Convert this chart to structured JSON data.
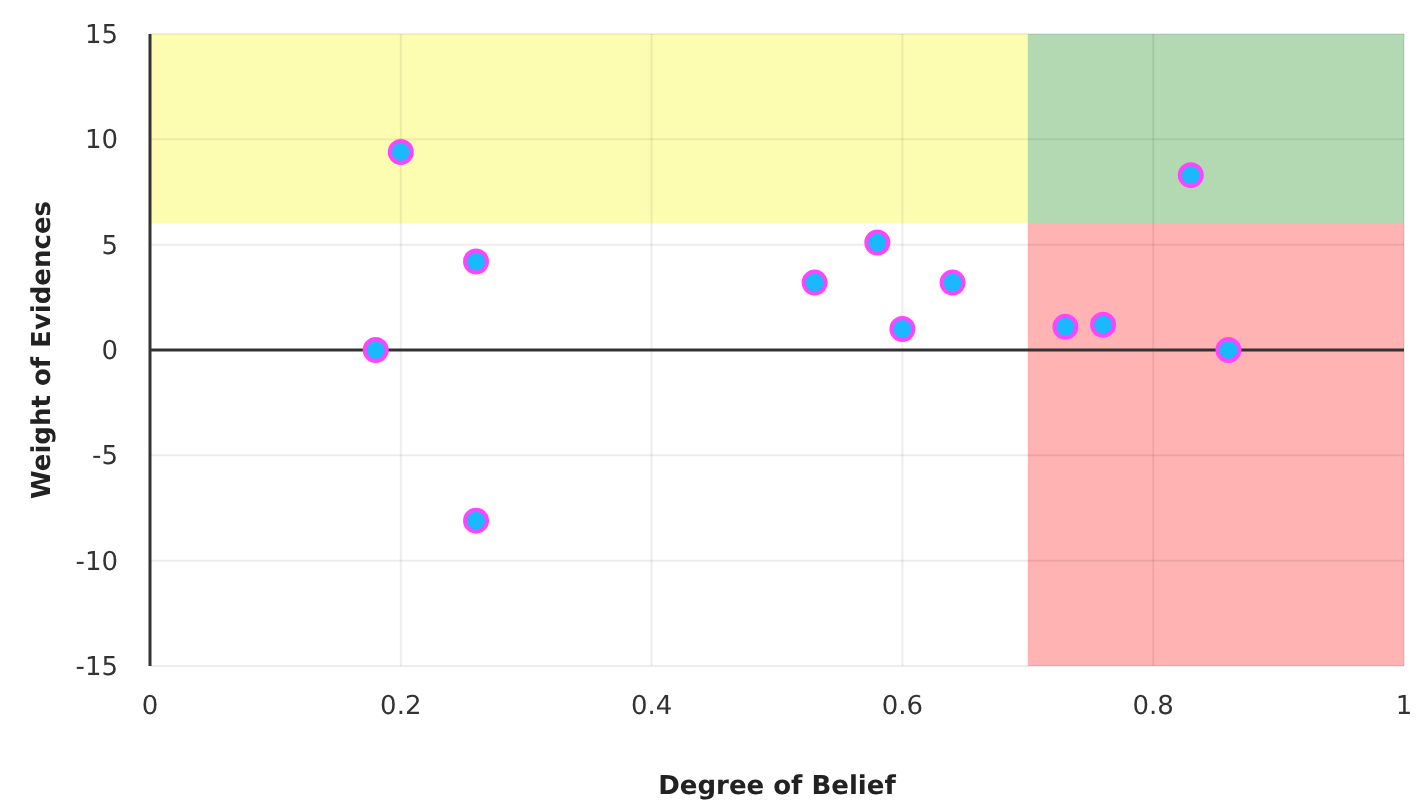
{
  "chart_data": {
    "type": "scatter",
    "xlabel": "Degree of Belief",
    "ylabel": "Weight of Evidences",
    "x": [
      0.18,
      0.2,
      0.26,
      0.26,
      0.53,
      0.58,
      0.6,
      0.64,
      0.73,
      0.76,
      0.83,
      0.86
    ],
    "series": [
      {
        "color": "#1ab8ff",
        "values": [
          0,
          9.4,
          4.2,
          -8.1,
          3.2,
          5.1,
          1.0,
          3.2,
          1.1,
          1.2,
          8.3,
          0
        ]
      }
    ],
    "marker": "circle",
    "bands": [
      {
        "axis": "x",
        "from": 0.7,
        "to": 1,
        "color": "#ffb3b3"
      },
      {
        "axis": "y",
        "from": 6,
        "to": 15,
        "color": "#fdfdb2"
      },
      {
        "axis": "y",
        "from": 6,
        "to": 15,
        "color": "#b3d9b2"
      }
    ],
    "xlim": [
      0,
      1
    ],
    "xticks": [
      0,
      0.2,
      0.4,
      0.6,
      0.8,
      1
    ],
    "ylim": [
      -15,
      15
    ],
    "yticks": [
      -15,
      -10,
      -5,
      0,
      5,
      10,
      15
    ],
    "grid": true,
    "ref_lines": [
      {
        "axis": "y",
        "value": 0,
        "color": "#333333"
      }
    ]
  }
}
